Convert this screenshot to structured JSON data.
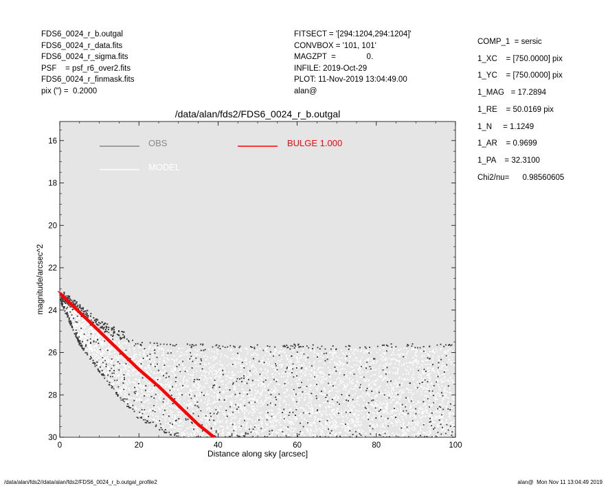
{
  "header_left": [
    "FDS6_0024_r_b.outgal",
    "FDS6_0024_r_data.fits",
    "FDS6_0024_r_sigma.fits",
    "PSF    = psf_r6_over2.fits",
    "FDS6_0024_r_finmask.fits",
    "pix (\") =  0.2000"
  ],
  "header_mid": [
    "FITSECT = '[294:1204,294:1204]'",
    "CONVBOX = '101, 101'",
    "MAGZPT  =              0.",
    "INFILE: 2019-Oct-29",
    "PLOT: 11-Nov-2019 13:04:49.00",
    "alan@"
  ],
  "params": [
    "COMP_1  = sersic",
    "1_XC    = [750.0000] pix",
    "1_YC    = [750.0000] pix",
    "1_MAG   = 17.2894",
    "1_RE    = 50.0169 pix",
    "1_N     = 1.1249",
    "1_AR    = 0.9699",
    "1_PA    = 32.3100",
    "",
    "Chi2/nu=      0.98560605"
  ],
  "footer_left": "/data/alan/fds2//data/alan/fds2/FDS6_0024_r_b.outgal_profile2",
  "footer_right": "alan@  Mon Nov 11 13:04:49 2019",
  "colors": {
    "plot_bg": "#e5e5e5",
    "obs": "#888888",
    "model": "#ffffff",
    "bulge": "#ff0000",
    "dots_dark": "#3a3a3a"
  },
  "chart_data": {
    "type": "scatter",
    "title": "/data/alan/fds2/FDS6_0024_r_b.outgal",
    "xlabel": "Distance along sky [arcsec]",
    "ylabel": "magnitude/arcsec^2",
    "xlim": [
      0,
      100
    ],
    "ylim": [
      30,
      15.1
    ],
    "y_inverted": true,
    "xticks": [
      0,
      20,
      40,
      60,
      80,
      100
    ],
    "yticks": [
      16,
      18,
      20,
      22,
      24,
      26,
      28,
      30
    ],
    "legend": [
      {
        "label": "OBS",
        "color": "#888888"
      },
      {
        "label": "MODEL",
        "color": "#ffffff"
      },
      {
        "label": "BULGE  1.000",
        "color": "#ff0000"
      }
    ],
    "series": [
      {
        "name": "BULGE  1.000",
        "kind": "line",
        "x": [
          0,
          5,
          10,
          15,
          20,
          25,
          30,
          35,
          39
        ],
        "y": [
          23.2,
          24.1,
          25.0,
          25.9,
          26.8,
          27.6,
          28.5,
          29.4,
          30.0
        ]
      },
      {
        "name": "OBS",
        "kind": "scatter",
        "upper_envelope_x": [
          0,
          5,
          10,
          15,
          20,
          30,
          40,
          50,
          60,
          70,
          80,
          90,
          100
        ],
        "upper_envelope_y": [
          23.3,
          24.0,
          24.8,
          25.2,
          25.5,
          25.6,
          25.6,
          25.6,
          25.6,
          25.7,
          25.6,
          25.6,
          25.6
        ],
        "lower_envelope_x": [
          0,
          5,
          10,
          15,
          20,
          30,
          40,
          60,
          80,
          100
        ],
        "lower_envelope_y": [
          23.4,
          25.5,
          26.8,
          28.0,
          29.0,
          30.0,
          30.0,
          30.0,
          30.0,
          30.0
        ]
      }
    ]
  }
}
